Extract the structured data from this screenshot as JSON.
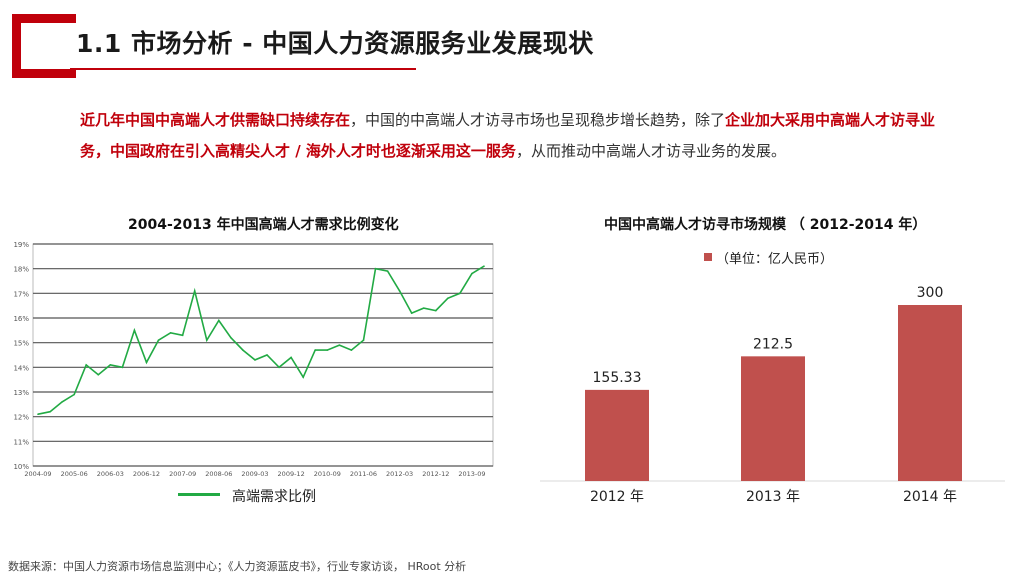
{
  "page": {
    "title": "1.1  市场分析 - 中国人力资源服务业发展现状",
    "intro": {
      "hl1": "近几年中国中高端人才供需缺口持续存在",
      "t1": "，中国的中高端人才访寻市场也呈现稳步增长趋势，除了",
      "hl2": "企业加大采用中高端人才访寻业务，中国政府在引入高精尖人才 / 海外人才时也逐渐采用这一服务",
      "t2": "，从而推动中高端人才访寻业务的发展。"
    },
    "source": "数据来源：中国人力资源市场信息监测中心；《人力资源蓝皮书》，行业专家访谈， HRoot 分析"
  },
  "colors": {
    "accent": "#c0000b",
    "line": "#22aa44",
    "bar": "#c0504d"
  },
  "chart_data": [
    {
      "type": "line",
      "title": "2004-2013 年中国高端人才需求比例变化",
      "ylim": [
        10,
        19
      ],
      "y_ticks": [
        "10%",
        "11%",
        "12%",
        "13%",
        "14%",
        "15%",
        "16%",
        "17%",
        "18%",
        "19%"
      ],
      "x_ticks": [
        "2004-09",
        "2005-06",
        "2006-03",
        "2006-12",
        "2007-09",
        "2008-06",
        "2009-03",
        "2009-12",
        "2010-09",
        "2011-06",
        "2012-03",
        "2012-12",
        "2013-09"
      ],
      "grid": true,
      "series": [
        {
          "name": "高端需求比例",
          "x": [
            "2004-09",
            "2004-12",
            "2005-03",
            "2005-06",
            "2005-09",
            "2005-12",
            "2006-03",
            "2006-06",
            "2006-09",
            "2006-12",
            "2007-03",
            "2007-06",
            "2007-09",
            "2007-12",
            "2008-03",
            "2008-06",
            "2008-09",
            "2008-12",
            "2009-03",
            "2009-06",
            "2009-09",
            "2009-12",
            "2010-03",
            "2010-06",
            "2010-09",
            "2010-12",
            "2011-03",
            "2011-06",
            "2011-09",
            "2011-12",
            "2012-03",
            "2012-06",
            "2012-09",
            "2012-12",
            "2013-03",
            "2013-06",
            "2013-09",
            "2013-12"
          ],
          "values": [
            12.1,
            12.2,
            12.6,
            12.9,
            14.1,
            13.7,
            14.1,
            14.0,
            15.5,
            14.2,
            15.1,
            15.4,
            15.3,
            17.1,
            15.1,
            15.9,
            15.2,
            14.7,
            14.3,
            14.5,
            14.0,
            14.4,
            13.6,
            14.7,
            14.7,
            14.9,
            14.7,
            15.1,
            18.0,
            17.9,
            17.1,
            16.2,
            16.4,
            16.3,
            16.8,
            17.0,
            17.8,
            18.1
          ]
        }
      ],
      "legend": "bottom"
    },
    {
      "type": "bar",
      "title": "中国中高端人才访寻市场规模 （ 2012-2014 年）",
      "categories": [
        "2012 年",
        "2013 年",
        "2014 年"
      ],
      "values": [
        155.33,
        212.5,
        300
      ],
      "value_labels": [
        "155.33",
        "212.5",
        "300"
      ],
      "legend": "（单位：亿人民币）",
      "legend_position": "top"
    }
  ]
}
